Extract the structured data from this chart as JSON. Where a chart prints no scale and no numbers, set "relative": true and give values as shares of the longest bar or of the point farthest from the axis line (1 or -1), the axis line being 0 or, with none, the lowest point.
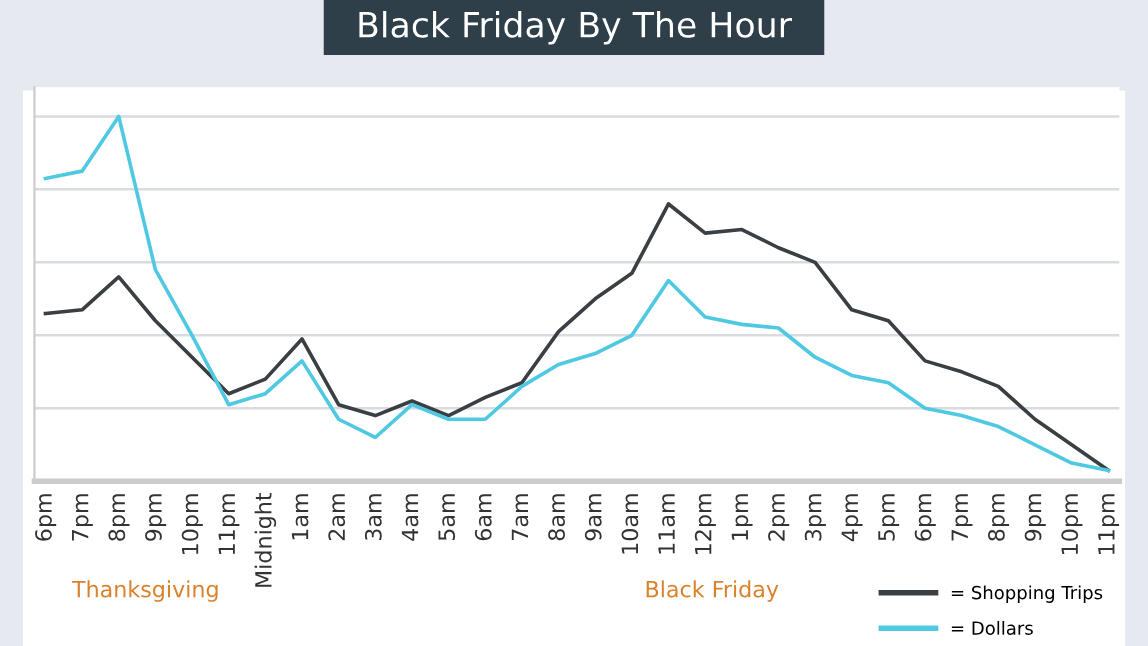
{
  "chart_data": {
    "type": "line",
    "title": "Black Friday By The Hour",
    "relative": true,
    "grid": "y",
    "legend": "bottom right",
    "marker": "none",
    "line_style": "solid",
    "categories": [
      "6pm",
      "7pm",
      "8pm",
      "9pm",
      "10pm",
      "11pm",
      "Midnight",
      "1am",
      "2am",
      "3am",
      "4am",
      "5am",
      "6am",
      "7am",
      "8am",
      "9am",
      "10am",
      "11am",
      "12pm",
      "1pm",
      "2pm",
      "3pm",
      "4pm",
      "5pm",
      "6pm",
      "7pm",
      "8pm",
      "9pm",
      "10pm",
      "11pm"
    ],
    "series": [
      {
        "name": "= Shopping Trips",
        "color": "#3a3f44",
        "values": [
          0.46,
          0.47,
          0.56,
          0.44,
          0.34,
          0.24,
          0.28,
          0.39,
          0.21,
          0.18,
          0.22,
          0.18,
          0.23,
          0.27,
          0.41,
          0.5,
          0.57,
          0.76,
          0.68,
          0.69,
          0.64,
          0.6,
          0.47,
          0.44,
          0.33,
          0.3,
          0.26,
          0.17,
          0.1,
          0.03
        ]
      },
      {
        "name": "= Dollars",
        "color": "#4ec9e1",
        "values": [
          0.83,
          0.85,
          1.0,
          0.58,
          0.4,
          0.21,
          0.24,
          0.33,
          0.17,
          0.12,
          0.21,
          0.17,
          0.17,
          0.26,
          0.32,
          0.35,
          0.4,
          0.55,
          0.45,
          0.43,
          0.42,
          0.34,
          0.29,
          0.27,
          0.2,
          0.18,
          0.15,
          0.1,
          0.05,
          0.03
        ]
      }
    ],
    "annotations": [
      "Thanksgiving",
      "Black Friday"
    ]
  }
}
